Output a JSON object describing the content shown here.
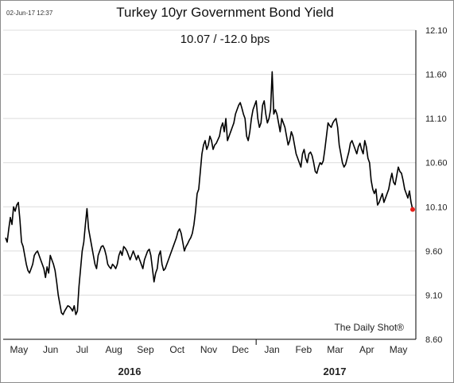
{
  "timestamp": "02-Jun-17 12:37",
  "credit": "The Daily Shot®",
  "colors": {
    "line": "#000000",
    "last_point": "#e8201a",
    "grid": "#dcdcdc"
  },
  "chart_data": {
    "type": "line",
    "title": "Turkey 10yr Government Bond Yield",
    "subtitle": "10.07  /  -12.0 bps",
    "xlabel": "",
    "ylabel": "",
    "x_tick_labels": [
      "May",
      "Jun",
      "Jul",
      "Aug",
      "Sep",
      "Oct",
      "Nov",
      "Dec",
      "Jan",
      "Feb",
      "Mar",
      "Apr",
      "May"
    ],
    "year_labels": [
      "2016",
      "2017"
    ],
    "y_ticks": [
      8.6,
      9.1,
      9.6,
      10.1,
      10.6,
      11.1,
      11.6,
      12.1
    ],
    "ylim": [
      8.6,
      12.1
    ],
    "grid": true,
    "y_axis_position": "right",
    "series": [
      {
        "values": [
          9.75,
          9.7,
          9.85,
          9.98,
          9.9,
          10.1,
          10.05,
          10.12,
          10.15,
          9.95,
          9.7,
          9.65,
          9.55,
          9.45,
          9.38,
          9.35,
          9.4,
          9.45,
          9.55,
          9.58,
          9.6,
          9.55,
          9.5,
          9.45,
          9.4,
          9.3,
          9.42,
          9.35,
          9.55,
          9.5,
          9.45,
          9.38,
          9.25,
          9.1,
          9.0,
          8.9,
          8.88,
          8.92,
          8.95,
          8.98,
          8.97,
          8.95,
          8.92,
          8.98,
          8.88,
          8.92,
          9.2,
          9.4,
          9.6,
          9.7,
          9.9,
          10.08,
          9.85,
          9.75,
          9.65,
          9.55,
          9.45,
          9.4,
          9.55,
          9.6,
          9.65,
          9.66,
          9.62,
          9.55,
          9.45,
          9.42,
          9.4,
          9.45,
          9.43,
          9.4,
          9.45,
          9.55,
          9.6,
          9.55,
          9.65,
          9.63,
          9.6,
          9.55,
          9.5,
          9.55,
          9.6,
          9.55,
          9.5,
          9.55,
          9.5,
          9.45,
          9.4,
          9.5,
          9.55,
          9.6,
          9.62,
          9.55,
          9.4,
          9.25,
          9.35,
          9.4,
          9.55,
          9.6,
          9.45,
          9.38,
          9.4,
          9.45,
          9.5,
          9.55,
          9.6,
          9.65,
          9.7,
          9.75,
          9.82,
          9.85,
          9.8,
          9.7,
          9.6,
          9.65,
          9.68,
          9.72,
          9.75,
          9.8,
          9.9,
          10.05,
          10.25,
          10.3,
          10.5,
          10.7,
          10.8,
          10.85,
          10.75,
          10.8,
          10.9,
          10.85,
          10.75,
          10.8,
          10.82,
          10.86,
          10.9,
          11.0,
          11.05,
          10.95,
          11.1,
          10.85,
          10.9,
          10.95,
          11.0,
          11.05,
          11.15,
          11.2,
          11.25,
          11.28,
          11.22,
          11.15,
          11.1,
          10.9,
          10.85,
          10.95,
          11.1,
          11.2,
          11.25,
          11.3,
          11.1,
          11.0,
          11.05,
          11.25,
          11.3,
          11.15,
          11.05,
          11.1,
          11.2,
          11.63,
          11.15,
          11.2,
          11.15,
          11.05,
          10.95,
          11.1,
          11.05,
          11.0,
          10.9,
          10.8,
          10.85,
          10.95,
          10.9,
          10.8,
          10.7,
          10.65,
          10.6,
          10.55,
          10.7,
          10.75,
          10.65,
          10.6,
          10.7,
          10.72,
          10.68,
          10.6,
          10.5,
          10.48,
          10.55,
          10.6,
          10.58,
          10.62,
          10.75,
          10.9,
          11.05,
          11.02,
          11.0,
          11.05,
          11.08,
          11.1,
          11.0,
          10.8,
          10.7,
          10.6,
          10.55,
          10.58,
          10.65,
          10.72,
          10.82,
          10.85,
          10.8,
          10.75,
          10.7,
          10.78,
          10.82,
          10.75,
          10.7,
          10.85,
          10.78,
          10.65,
          10.6,
          10.4,
          10.3,
          10.25,
          10.3,
          10.12,
          10.15,
          10.2,
          10.25,
          10.15,
          10.2,
          10.25,
          10.3,
          10.4,
          10.48,
          10.38,
          10.35,
          10.45,
          10.55,
          10.5,
          10.48,
          10.4,
          10.3,
          10.25,
          10.2,
          10.28,
          10.15,
          10.07
        ]
      }
    ]
  }
}
